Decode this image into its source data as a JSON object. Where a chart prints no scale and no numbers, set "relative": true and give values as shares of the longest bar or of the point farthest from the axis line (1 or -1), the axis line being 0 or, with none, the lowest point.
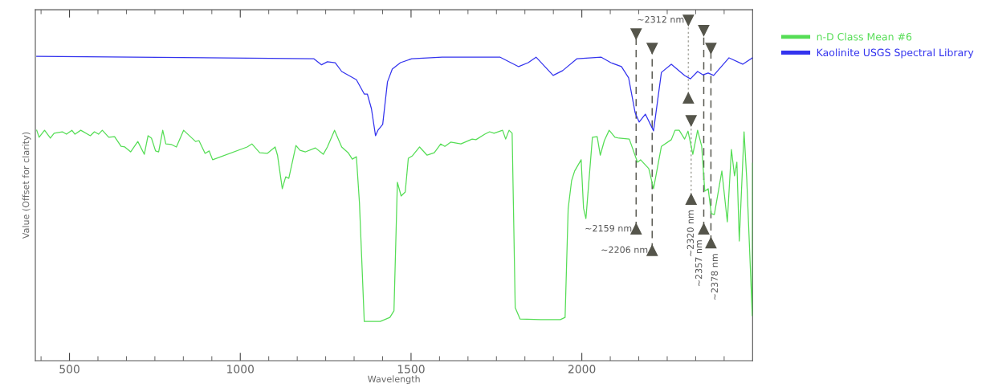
{
  "chart_data": {
    "type": "line",
    "relative": true,
    "xlabel": "Wavelength",
    "ylabel": "Value (Offset for clarity)",
    "xlim": [
      400,
      2500
    ],
    "xticks": [
      {
        "value": 416.7,
        "label": null
      },
      500,
      {
        "value": 583.3,
        "label": null
      },
      {
        "value": 666.7,
        "label": null
      },
      {
        "value": 750,
        "label": null
      },
      {
        "value": 833.3,
        "label": null
      },
      {
        "value": 916.7,
        "label": null
      },
      1000,
      {
        "value": 1083.3,
        "label": null
      },
      {
        "value": 1166.7,
        "label": null
      },
      {
        "value": 1250,
        "label": null
      },
      {
        "value": 1333.3,
        "label": null
      },
      {
        "value": 1416.7,
        "label": null
      },
      1500,
      {
        "value": 1583.3,
        "label": null
      },
      {
        "value": 1666.7,
        "label": null
      },
      {
        "value": 1750,
        "label": null
      },
      {
        "value": 1833.3,
        "label": null
      },
      {
        "value": 1916.7,
        "label": null
      },
      2000,
      {
        "value": 2083.3,
        "label": null
      },
      {
        "value": 2166.7,
        "label": null
      },
      {
        "value": 2250,
        "label": null
      },
      {
        "value": 2333.3,
        "label": null
      },
      {
        "value": 2416.7,
        "label": null
      }
    ],
    "legend": "top right",
    "grid": false,
    "marker": "none",
    "line_style": "solid",
    "series": [
      {
        "name": "n-D Class Mean #6",
        "color": "#55dd55",
        "x": [
          404,
          411,
          427,
          444,
          455,
          479,
          491,
          507,
          516,
          533,
          561,
          573,
          585,
          596,
          615,
          632,
          651,
          662,
          679,
          700,
          719,
          730,
          740,
          752,
          761,
          773,
          782,
          799,
          813,
          834,
          869,
          879,
          897,
          909,
          919,
          1020,
          1034,
          1057,
          1079,
          1102,
          1109,
          1123,
          1133,
          1142,
          1163,
          1175,
          1191,
          1220,
          1243,
          1255,
          1276,
          1297,
          1316,
          1328,
          1340,
          1349,
          1363,
          1410,
          1438,
          1450,
          1460,
          1471,
          1483,
          1492,
          1504,
          1525,
          1547,
          1568,
          1587,
          1599,
          1616,
          1646,
          1679,
          1690,
          1716,
          1730,
          1743,
          1768,
          1777,
          1787,
          1796,
          1805,
          1819,
          1880,
          1937,
          1951,
          1960,
          1970,
          1979,
          1998,
          2005,
          2012,
          2031,
          2045,
          2054,
          2066,
          2080,
          2097,
          2109,
          2139,
          2163,
          2172,
          2196,
          2210,
          2233,
          2262,
          2273,
          2285,
          2301,
          2311,
          2325,
          2339,
          2351,
          2360,
          2370,
          2379,
          2388,
          2410,
          2426,
          2438,
          2447,
          2454,
          2461,
          2475,
          2483,
          2499,
          2500
        ],
        "values": [
          0.757,
          0.734,
          0.757,
          0.731,
          0.747,
          0.752,
          0.744,
          0.757,
          0.744,
          0.757,
          0.739,
          0.752,
          0.744,
          0.757,
          0.734,
          0.736,
          0.704,
          0.702,
          0.686,
          0.72,
          0.678,
          0.739,
          0.731,
          0.689,
          0.686,
          0.757,
          0.712,
          0.71,
          0.702,
          0.757,
          0.72,
          0.723,
          0.681,
          0.689,
          0.66,
          0.702,
          0.712,
          0.683,
          0.681,
          0.702,
          0.675,
          0.565,
          0.604,
          0.599,
          0.707,
          0.691,
          0.686,
          0.699,
          0.678,
          0.702,
          0.757,
          0.702,
          0.683,
          0.662,
          0.67,
          0.517,
          0.129,
          0.129,
          0.142,
          0.164,
          0.586,
          0.541,
          0.554,
          0.665,
          0.673,
          0.702,
          0.675,
          0.683,
          0.712,
          0.704,
          0.718,
          0.712,
          0.728,
          0.726,
          0.744,
          0.752,
          0.747,
          0.757,
          0.728,
          0.757,
          0.747,
          0.174,
          0.137,
          0.135,
          0.135,
          0.142,
          0.499,
          0.591,
          0.623,
          0.66,
          0.501,
          0.467,
          0.734,
          0.736,
          0.675,
          0.723,
          0.757,
          0.734,
          0.731,
          0.728,
          0.652,
          0.66,
          0.631,
          0.565,
          0.704,
          0.726,
          0.757,
          0.757,
          0.728,
          0.754,
          0.678,
          0.757,
          0.704,
          0.557,
          0.565,
          0.483,
          0.48,
          0.623,
          0.456,
          0.694,
          0.607,
          0.652,
          0.393,
          0.752,
          0.594,
          0.148,
          0.649
        ]
      },
      {
        "name": "Kaolinite USGS Spectral Library",
        "color": "#3333ee",
        "x": [
          404,
          1215,
          1238,
          1255,
          1278,
          1297,
          1340,
          1363,
          1372,
          1384,
          1396,
          1403,
          1417,
          1431,
          1445,
          1469,
          1502,
          1591,
          1761,
          1815,
          1843,
          1866,
          1916,
          1944,
          1986,
          2057,
          2085,
          2116,
          2137,
          2156,
          2168,
          2186,
          2210,
          2233,
          2262,
          2301,
          2318,
          2339,
          2355,
          2370,
          2386,
          2431,
          2471,
          2500
        ],
        "values": [
          1.0,
          0.992,
          0.972,
          0.982,
          0.979,
          0.95,
          0.923,
          0.876,
          0.876,
          0.828,
          0.739,
          0.757,
          0.776,
          0.916,
          0.958,
          0.979,
          0.992,
          0.997,
          0.997,
          0.966,
          0.979,
          0.997,
          0.937,
          0.953,
          0.992,
          0.997,
          0.979,
          0.966,
          0.929,
          0.815,
          0.784,
          0.81,
          0.755,
          0.947,
          0.974,
          0.937,
          0.926,
          0.95,
          0.939,
          0.945,
          0.937,
          0.995,
          0.974,
          0.995
        ]
      }
    ],
    "ref_lines": [
      {
        "axis": "x",
        "value": 2159,
        "label": "~2159 nm",
        "color": "#5a5a52",
        "line_style": "dashed"
      },
      {
        "axis": "x",
        "value": 2206,
        "label": "~2206 nm",
        "color": "#5a5a52",
        "line_style": "dashed"
      },
      {
        "axis": "x",
        "value": 2312,
        "label": "~2312 nm",
        "color": "#a8a8a0",
        "line_style": "dotted"
      },
      {
        "axis": "x",
        "value": 2320,
        "label": "~2320 nm",
        "color": "#a8a8a0",
        "line_style": "dotted"
      },
      {
        "axis": "x",
        "value": 2357,
        "label": "~2357 nm",
        "color": "#5a5a52",
        "line_style": "dashed"
      },
      {
        "axis": "x",
        "value": 2378,
        "label": "~2378 nm",
        "color": "#5a5a52",
        "line_style": "dashed"
      }
    ]
  }
}
